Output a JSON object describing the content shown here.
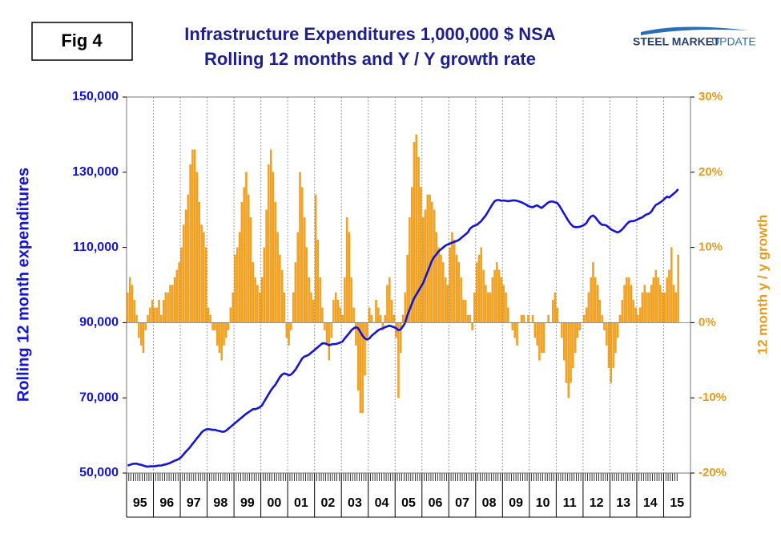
{
  "chart_data": {
    "type": "bar-line",
    "figure_label": "Fig 4",
    "title": "Infrastructure Expenditures 1,000,000 $ NSA",
    "subtitle": "Rolling 12 months and Y / Y growth rate",
    "logo": [
      "STEEL MARKET",
      "UPDATE"
    ],
    "ylabel": "Rolling 12 month expenditures",
    "y2label": "12 month y / y growth",
    "x_grid": true,
    "ylim": [
      50000,
      150000
    ],
    "yticks": [
      {
        "value": 50000,
        "label": "50,000"
      },
      {
        "value": 70000,
        "label": "70,000"
      },
      {
        "value": 90000,
        "label": "90,000"
      },
      {
        "value": 110000,
        "label": "110,000"
      },
      {
        "value": 130000,
        "label": "130,000"
      },
      {
        "value": 150000,
        "label": "150,000"
      }
    ],
    "y2lim": [
      -20,
      30
    ],
    "y2ticks": [
      {
        "value": -20,
        "label": "-20%"
      },
      {
        "value": -10,
        "label": "-10%"
      },
      {
        "value": 0,
        "label": "0%"
      },
      {
        "value": 10,
        "label": "10%"
      },
      {
        "value": 20,
        "label": "20%"
      },
      {
        "value": 30,
        "label": "30%"
      }
    ],
    "categories": [
      null,
      null,
      null,
      null,
      null,
      null,
      "95",
      null,
      null,
      null,
      null,
      null,
      null,
      null,
      null,
      null,
      null,
      null,
      "96",
      null,
      null,
      null,
      null,
      null,
      null,
      null,
      null,
      null,
      null,
      null,
      "97",
      null,
      null,
      null,
      null,
      null,
      null,
      null,
      null,
      null,
      null,
      null,
      "98",
      null,
      null,
      null,
      null,
      null,
      null,
      null,
      null,
      null,
      null,
      null,
      "99",
      null,
      null,
      null,
      null,
      null,
      null,
      null,
      null,
      null,
      null,
      null,
      "00",
      null,
      null,
      null,
      null,
      null,
      null,
      null,
      null,
      null,
      null,
      null,
      "01",
      null,
      null,
      null,
      null,
      null,
      null,
      null,
      null,
      null,
      null,
      null,
      "02",
      null,
      null,
      null,
      null,
      null,
      null,
      null,
      null,
      null,
      null,
      null,
      "03",
      null,
      null,
      null,
      null,
      null,
      null,
      null,
      null,
      null,
      null,
      null,
      "04",
      null,
      null,
      null,
      null,
      null,
      null,
      null,
      null,
      null,
      null,
      null,
      "05",
      null,
      null,
      null,
      null,
      null,
      null,
      null,
      null,
      null,
      null,
      null,
      "06",
      null,
      null,
      null,
      null,
      null,
      null,
      null,
      null,
      null,
      null,
      null,
      "07",
      null,
      null,
      null,
      null,
      null,
      null,
      null,
      null,
      null,
      null,
      null,
      "08",
      null,
      null,
      null,
      null,
      null,
      null,
      null,
      null,
      null,
      null,
      null,
      "09",
      null,
      null,
      null,
      null,
      null,
      null,
      null,
      null,
      null,
      null,
      null,
      "10",
      null,
      null,
      null,
      null,
      null,
      null,
      null,
      null,
      null,
      null,
      null,
      "11",
      null,
      null,
      null,
      null,
      null,
      null,
      null,
      null,
      null,
      null,
      null,
      "12",
      null,
      null,
      null,
      null,
      null,
      null,
      null,
      null,
      null,
      null,
      null,
      "13",
      null,
      null,
      null,
      null,
      null,
      null,
      null,
      null,
      null,
      null,
      null,
      "14",
      null,
      null,
      null,
      null,
      null,
      null,
      null,
      null,
      null,
      null,
      null,
      "15"
    ],
    "series": [
      {
        "name": "12 month y / y growth",
        "axis": "y2",
        "kind": "bar",
        "color": "#f7a21b",
        "values": [
          4,
          6,
          5,
          3,
          1,
          -2,
          -3,
          -4,
          -1,
          1,
          2,
          3,
          2,
          2,
          3,
          1,
          3,
          4,
          4,
          5,
          5,
          6,
          7,
          8,
          10,
          13,
          15,
          17,
          21,
          23,
          23,
          20,
          16,
          13,
          12,
          10,
          2,
          1,
          -1,
          -1,
          -3,
          -4,
          -5,
          -3,
          -2,
          -1,
          2,
          4,
          9,
          10,
          12,
          16,
          18,
          20,
          17,
          14,
          8,
          6,
          5,
          4,
          6,
          10,
          15,
          21,
          23,
          20,
          16,
          12,
          9,
          7,
          4,
          -2,
          -3,
          -1,
          4,
          8,
          12,
          20,
          18,
          14,
          10,
          6,
          4,
          3,
          17,
          11,
          6,
          2,
          -1,
          -3,
          -5,
          -2,
          3,
          4,
          3,
          2,
          1,
          6,
          14,
          12,
          6,
          2,
          -3,
          -9,
          -12,
          -12,
          -7,
          -2,
          2,
          1,
          0,
          3,
          2,
          1,
          -1,
          1,
          5,
          6,
          3,
          1,
          -2,
          -10,
          -4,
          1,
          4,
          9,
          14,
          18,
          24,
          25,
          22,
          18,
          14,
          15,
          17,
          17,
          16,
          15,
          12,
          10,
          9,
          8,
          6,
          5,
          10,
          12,
          11,
          9,
          8,
          6,
          3,
          3,
          1,
          1,
          -1,
          4,
          8,
          9,
          10,
          7,
          5,
          4,
          4,
          6,
          7,
          8,
          7,
          6,
          5,
          4,
          2,
          0,
          -1,
          -2,
          -3,
          0,
          1,
          1,
          0,
          1,
          0,
          1,
          -2,
          -3,
          -5,
          -4,
          -4,
          0,
          1,
          0,
          3,
          4,
          2,
          0,
          -2,
          -5,
          -8,
          -10,
          -8,
          -6,
          -4,
          -2,
          -1,
          0,
          1,
          2,
          4,
          6,
          8,
          6,
          5,
          3,
          1,
          -1,
          -3,
          -6,
          -8,
          -6,
          -4,
          -2,
          1,
          3,
          5,
          6,
          6,
          5,
          3,
          2,
          1,
          2,
          4,
          5,
          4,
          4,
          5,
          6,
          7,
          6,
          5,
          4,
          4,
          6,
          7,
          10,
          5,
          4,
          9
        ]
      },
      {
        "name": "Rolling 12 month expenditures",
        "axis": "y",
        "kind": "line",
        "color": "#1414d8",
        "values": [
          52000,
          52200,
          52400,
          52500,
          52500,
          52300,
          52200,
          52000,
          51800,
          51700,
          51800,
          51800,
          51800,
          51900,
          52000,
          52000,
          52200,
          52300,
          52500,
          52700,
          53000,
          53300,
          53500,
          53800,
          54300,
          55000,
          55700,
          56300,
          57000,
          57800,
          58500,
          59300,
          60000,
          60800,
          61300,
          61600,
          61700,
          61600,
          61500,
          61500,
          61300,
          61200,
          61000,
          61000,
          61300,
          61800,
          62300,
          62800,
          63300,
          63800,
          64300,
          64800,
          65300,
          65800,
          66200,
          66600,
          67000,
          67000,
          67200,
          67500,
          68000,
          69000,
          70000,
          71000,
          72000,
          72800,
          73500,
          74500,
          75500,
          76200,
          76500,
          76300,
          76000,
          76200,
          76800,
          77500,
          78500,
          79500,
          80500,
          81000,
          81200,
          81500,
          82000,
          82500,
          83000,
          83500,
          84000,
          84500,
          84500,
          84300,
          84000,
          84200,
          84300,
          84300,
          84500,
          84700,
          85000,
          85800,
          86500,
          87200,
          88000,
          88500,
          88800,
          88500,
          87500,
          86500,
          85800,
          85500,
          85800,
          86500,
          87000,
          87500,
          88000,
          88300,
          88500,
          88800,
          89000,
          89200,
          89000,
          88800,
          88500,
          88000,
          88200,
          89000,
          90000,
          92000,
          93500,
          95000,
          96500,
          97500,
          98500,
          99500,
          100500,
          102000,
          103500,
          105000,
          106500,
          107500,
          108200,
          109000,
          109500,
          110000,
          110500,
          110800,
          111000,
          111300,
          111500,
          111700,
          112000,
          112500,
          113000,
          113500,
          114000,
          115000,
          115500,
          115800,
          116000,
          116500,
          117000,
          117800,
          118500,
          119500,
          120500,
          121500,
          122300,
          122600,
          122600,
          122400,
          122500,
          122400,
          122300,
          122400,
          122500,
          122500,
          122400,
          122200,
          122000,
          121700,
          121400,
          121000,
          120800,
          120700,
          121000,
          121200,
          120800,
          120500,
          121000,
          121500,
          122000,
          122200,
          122200,
          122000,
          121800,
          121000,
          120000,
          119000,
          118000,
          117000,
          116200,
          115600,
          115400,
          115400,
          115500,
          115700,
          116000,
          116500,
          117500,
          118200,
          118500,
          118000,
          117200,
          116500,
          116000,
          116000,
          115800,
          115300,
          114800,
          114500,
          114200,
          114000,
          114300,
          114800,
          115500,
          116200,
          116800,
          117000,
          117000,
          117200,
          117500,
          117800,
          118000,
          118500,
          118800,
          119000,
          119500,
          120500,
          121300,
          121600,
          122000,
          122400,
          123000,
          123500,
          123300,
          123800,
          124300,
          124800,
          125500
        ]
      }
    ]
  }
}
